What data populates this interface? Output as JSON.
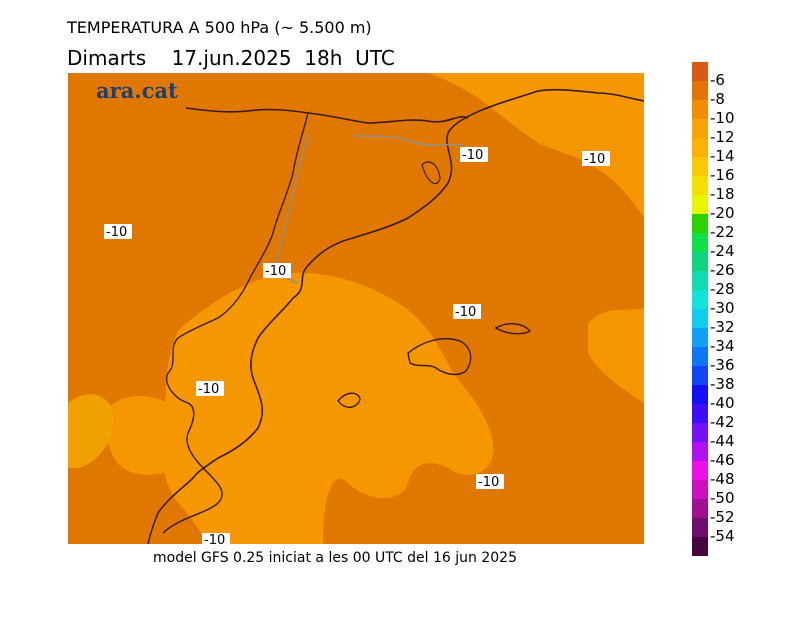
{
  "header": {
    "title": "TEMPERATURA A 500 hPa (~ 5.500 m)",
    "subtitle": "Dimarts    17.jun.2025  18h  UTC"
  },
  "logo": {
    "text": "ara.cat"
  },
  "footer": {
    "text": "model GFS 0.25 iniciat a les 00 UTC del 16 jun 2025"
  },
  "map": {
    "isolines": [
      {
        "label": "-10"
      },
      {
        "label": "-10"
      },
      {
        "label": "-10"
      },
      {
        "label": "-10"
      },
      {
        "label": "-10"
      },
      {
        "label": "-10"
      },
      {
        "label": "-10"
      },
      {
        "label": "-10"
      }
    ],
    "colors": {
      "darker": "#e07800",
      "lighter": "#f49700",
      "coast": "#3a1a1a",
      "border": "#8f8f8f"
    }
  },
  "legend": {
    "entries": [
      {
        "color": "#d85a14",
        "label": "-6"
      },
      {
        "color": "#e27406",
        "label": "-8"
      },
      {
        "color": "#f08d00",
        "label": "-10"
      },
      {
        "color": "#f7a400",
        "label": "-12"
      },
      {
        "color": "#f9b200",
        "label": "-14"
      },
      {
        "color": "#f8c800",
        "label": "-16"
      },
      {
        "color": "#f3df00",
        "label": "-18"
      },
      {
        "color": "#e9f400",
        "label": "-20"
      },
      {
        "color": "#2bd400",
        "label": "-22"
      },
      {
        "color": "#10e048",
        "label": "-24"
      },
      {
        "color": "#10d47e",
        "label": "-26"
      },
      {
        "color": "#10dcb0",
        "label": "-28"
      },
      {
        "color": "#12e2da",
        "label": "-30"
      },
      {
        "color": "#10cdf0",
        "label": "-32"
      },
      {
        "color": "#109ff2",
        "label": "-34"
      },
      {
        "color": "#1075f4",
        "label": "-36"
      },
      {
        "color": "#1048f6",
        "label": "-38"
      },
      {
        "color": "#1410f6",
        "label": "-40"
      },
      {
        "color": "#3c10f2",
        "label": "-42"
      },
      {
        "color": "#7410f2",
        "label": "-44"
      },
      {
        "color": "#b010f0",
        "label": "-46"
      },
      {
        "color": "#ec10e8",
        "label": "-48"
      },
      {
        "color": "#cc10c0",
        "label": "-50"
      },
      {
        "color": "#a01090",
        "label": "-52"
      },
      {
        "color": "#6e0e6a",
        "label": "-54"
      },
      {
        "color": "#46063e",
        "label": ""
      }
    ]
  }
}
